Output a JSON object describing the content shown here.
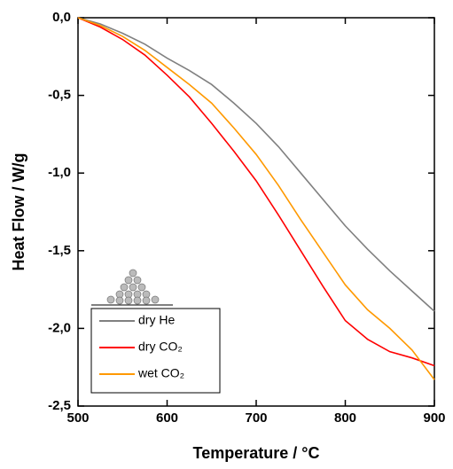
{
  "chart_data": {
    "type": "line",
    "xlabel": "Temperature / °C",
    "ylabel": "Heat Flow / W/g",
    "x": [
      500,
      525,
      550,
      575,
      600,
      625,
      650,
      675,
      700,
      725,
      750,
      775,
      800,
      825,
      850,
      875,
      900
    ],
    "series": [
      {
        "name": "dry He",
        "color": "#808080",
        "values": [
          0,
          -0.04,
          -0.1,
          -0.17,
          -0.26,
          -0.34,
          -0.43,
          -0.55,
          -0.68,
          -0.83,
          -1.0,
          -1.17,
          -1.34,
          -1.49,
          -1.63,
          -1.76,
          -1.89
        ]
      },
      {
        "name": "dry CO₂",
        "color": "#ff0000",
        "values": [
          0,
          -0.06,
          -0.14,
          -0.24,
          -0.37,
          -0.51,
          -0.68,
          -0.86,
          -1.05,
          -1.27,
          -1.5,
          -1.73,
          -1.95,
          -2.07,
          -2.15,
          -2.19,
          -2.24
        ]
      },
      {
        "name": "wet CO₂",
        "color": "#ff9900",
        "values": [
          0,
          -0.05,
          -0.12,
          -0.21,
          -0.32,
          -0.43,
          -0.55,
          -0.71,
          -0.88,
          -1.08,
          -1.3,
          -1.51,
          -1.72,
          -1.88,
          -2.0,
          -2.14,
          -2.33
        ]
      }
    ],
    "xlim": [
      500,
      900
    ],
    "xticks": [
      500,
      600,
      700,
      800,
      900
    ],
    "ylim": [
      -2.5,
      0
    ],
    "yticks": [
      {
        "value": -2.5,
        "label": "-2,5"
      },
      {
        "value": -2.0,
        "label": "-2,0"
      },
      {
        "value": -1.5,
        "label": "-1,5"
      },
      {
        "value": -1.0,
        "label": "-1,0"
      },
      {
        "value": -0.5,
        "label": "-0,5"
      },
      {
        "value": 0,
        "label": "0,0"
      }
    ],
    "legend": "lower left"
  }
}
